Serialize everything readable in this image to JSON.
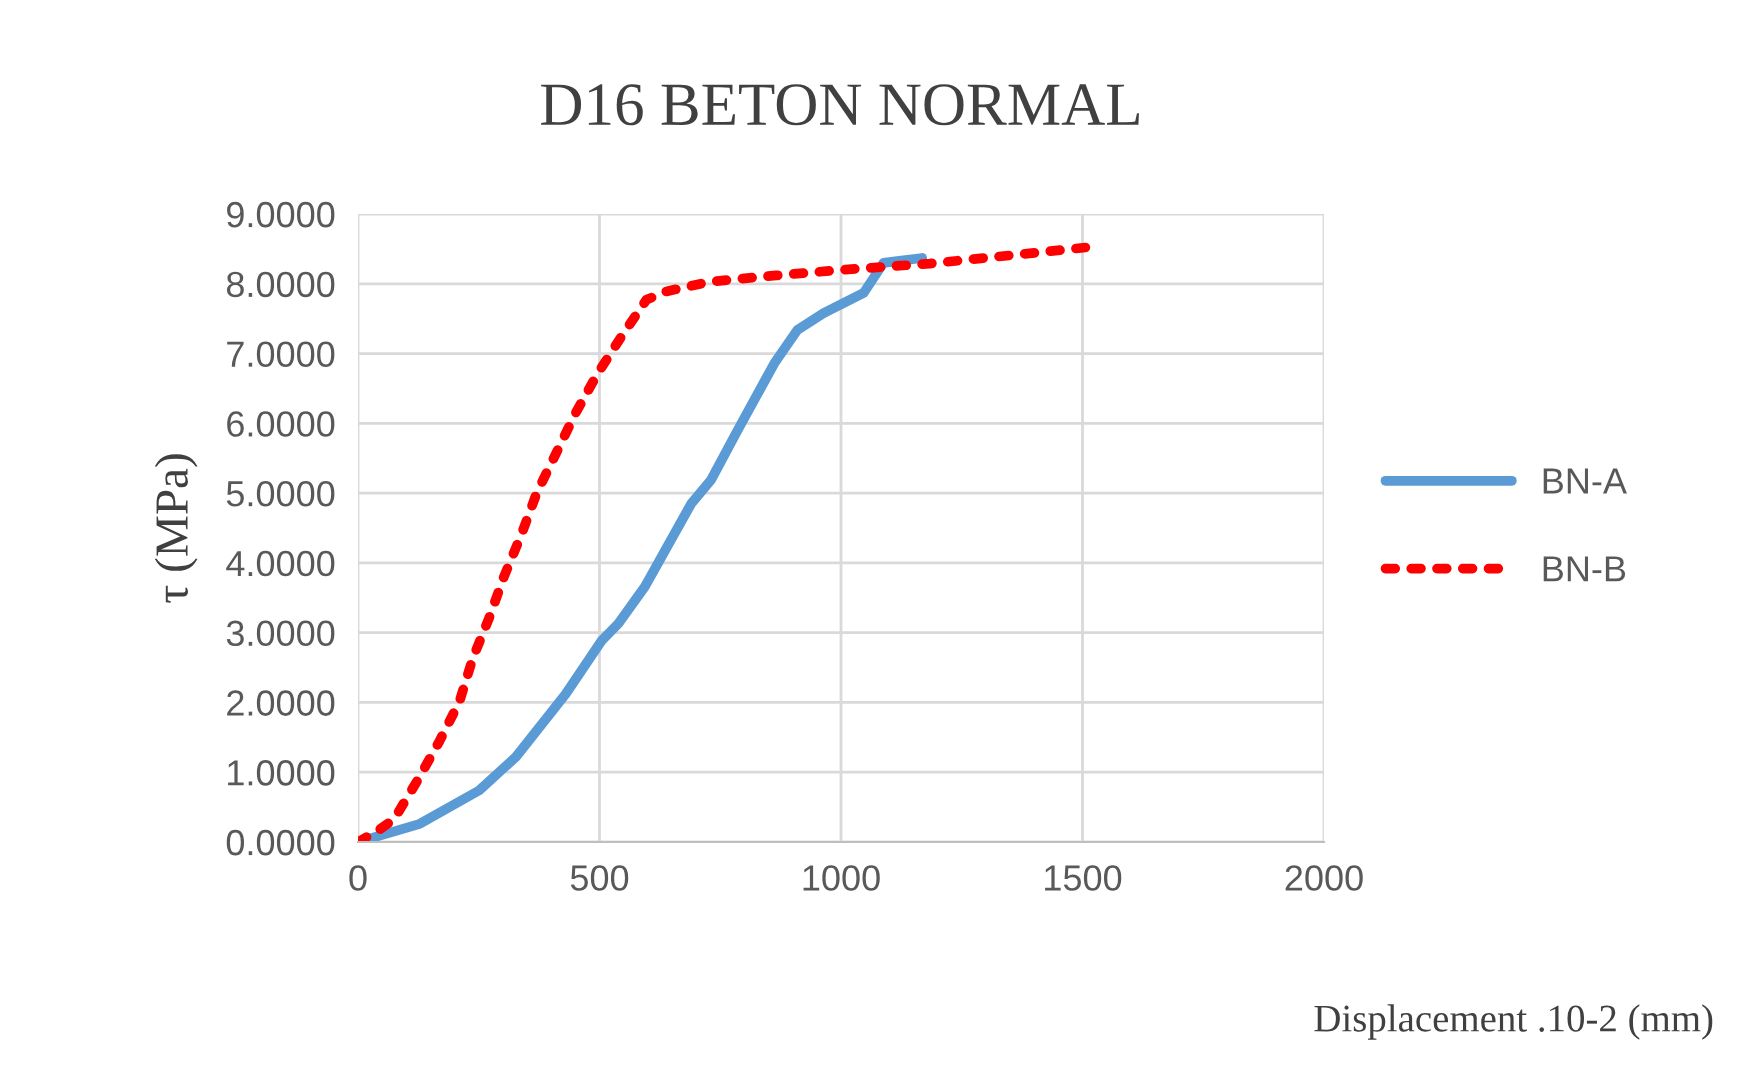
{
  "chart_data": {
    "type": "line",
    "title": "D16 BETON NORMAL",
    "xlabel": "Displacement .10-2 (mm)",
    "ylabel": "τ (MPa)",
    "xlim": [
      0,
      2000
    ],
    "xticks": [
      0,
      500,
      1000,
      1500,
      2000
    ],
    "ylim": [
      0,
      9
    ],
    "yticks": [
      {
        "value": 0,
        "label": "0.0000"
      },
      {
        "value": 1,
        "label": "1.0000"
      },
      {
        "value": 2,
        "label": "2.0000"
      },
      {
        "value": 3,
        "label": "3.0000"
      },
      {
        "value": 4,
        "label": "4.0000"
      },
      {
        "value": 5,
        "label": "5.0000"
      },
      {
        "value": 6,
        "label": "6.0000"
      },
      {
        "value": 7,
        "label": "7.0000"
      },
      {
        "value": 8,
        "label": "8.0000"
      },
      {
        "value": 9,
        "label": "9.0000"
      }
    ],
    "grid": true,
    "legend": "right",
    "marker": "none",
    "series": [
      {
        "name": "BN-A",
        "color": "#5b9bd5",
        "line_style": "solid",
        "x": [
          0,
          128,
          251,
          327,
          430,
          505,
          539,
          594,
          690,
          731,
          786,
          862,
          910,
          964,
          1047,
          1088,
          1168
        ],
        "values": [
          0,
          0.26,
          0.74,
          1.22,
          2.12,
          2.89,
          3.13,
          3.66,
          4.85,
          5.19,
          5.9,
          6.86,
          7.34,
          7.58,
          7.87,
          8.3,
          8.37
        ]
      },
      {
        "name": "BN-B",
        "color": "#ff0000",
        "line_style": "dotted",
        "x": [
          0,
          41,
          75,
          123,
          169,
          210,
          237,
          272,
          302,
          338,
          370,
          410,
          450,
          495,
          545,
          597,
          638,
          729,
          866,
          1003,
          1184,
          1368,
          1506
        ],
        "values": [
          0,
          0.16,
          0.33,
          0.88,
          1.45,
          2.01,
          2.62,
          3.22,
          3.8,
          4.4,
          5.0,
          5.57,
          6.14,
          6.7,
          7.24,
          7.77,
          7.89,
          8.03,
          8.12,
          8.2,
          8.29,
          8.42,
          8.52
        ]
      }
    ]
  }
}
